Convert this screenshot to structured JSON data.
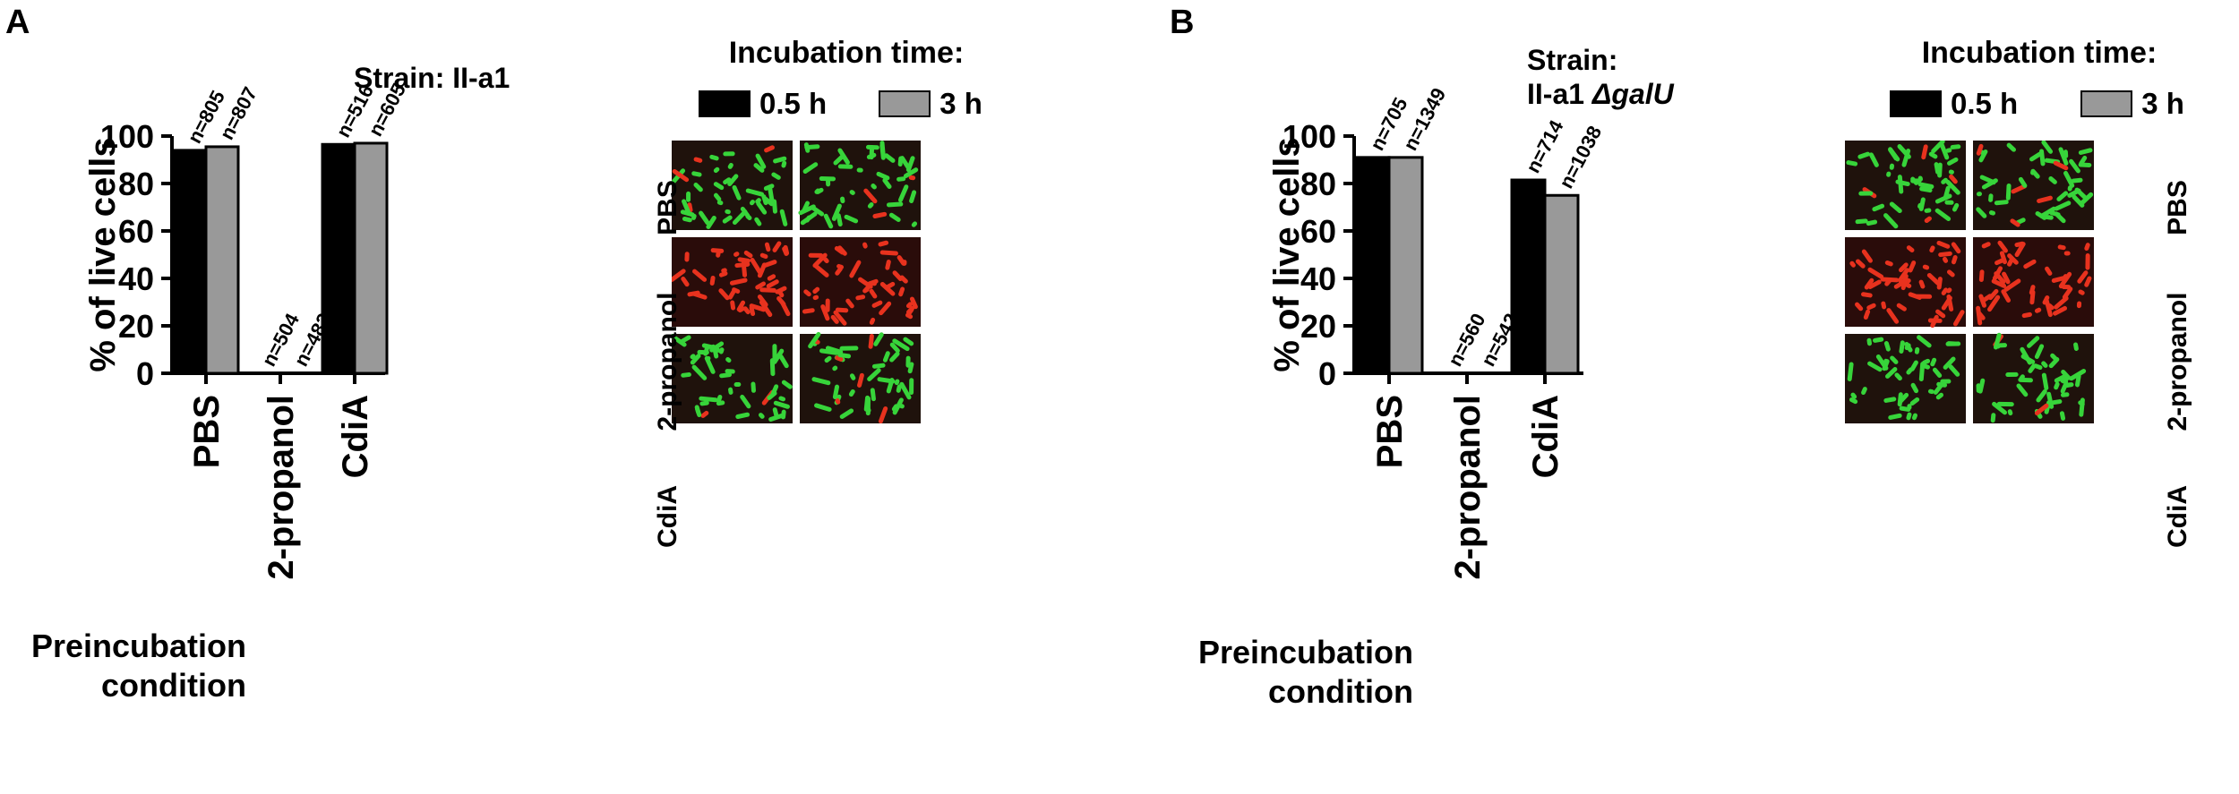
{
  "panels": [
    {
      "letter": "A",
      "strain": {
        "prefix": "Strain: II-a1",
        "mutant": ""
      },
      "incubation_title": "Incubation time:",
      "legend": [
        {
          "label": "0.5 h",
          "color": "#000000"
        },
        {
          "label": "3 h",
          "color": "#999999"
        }
      ],
      "micrograph_rows": [
        "PBS",
        "2-propanol",
        "CdiA"
      ],
      "preincubation_label": [
        "Preincubation",
        "condition"
      ]
    },
    {
      "letter": "B",
      "strain": {
        "prefix": "Strain:",
        "line2": "II-a1 ",
        "mutant": "ΔgalU"
      },
      "incubation_title": "Incubation time:",
      "legend": [
        {
          "label": "0.5 h",
          "color": "#000000"
        },
        {
          "label": "3 h",
          "color": "#999999"
        }
      ],
      "micrograph_rows": [
        "PBS",
        "2-propanol",
        "CdiA"
      ],
      "preincubation_label": [
        "Preincubation",
        "condition"
      ]
    }
  ],
  "chart_data": [
    {
      "type": "bar",
      "panel": "A",
      "categories": [
        "PBS",
        "2-propanol",
        "CdiA"
      ],
      "series": [
        {
          "name": "0.5 h",
          "values": [
            94,
            0,
            96.5
          ],
          "labels": [
            "n=805",
            "n=504",
            "n=516"
          ],
          "color": "#000000"
        },
        {
          "name": "3 h",
          "values": [
            95.5,
            0,
            97
          ],
          "labels": [
            "n=807",
            "n=482",
            "n=605"
          ],
          "color": "#999999"
        }
      ],
      "ylabel": "% of live cells",
      "ylim": [
        0,
        100
      ],
      "yticks": [
        0,
        20,
        40,
        60,
        80,
        100
      ]
    },
    {
      "type": "bar",
      "panel": "B",
      "categories": [
        "PBS",
        "2-propanol",
        "CdiA"
      ],
      "series": [
        {
          "name": "0.5 h",
          "values": [
            91,
            0,
            81.5
          ],
          "labels": [
            "n=705",
            "n=560",
            "n=714"
          ],
          "color": "#000000"
        },
        {
          "name": "3 h",
          "values": [
            91,
            0,
            75
          ],
          "labels": [
            "n=1349",
            "n=542",
            "n=1038"
          ],
          "color": "#999999"
        }
      ],
      "ylabel": "% of live cells",
      "ylim": [
        0,
        100
      ],
      "yticks": [
        0,
        20,
        40,
        60,
        80,
        100
      ]
    }
  ]
}
